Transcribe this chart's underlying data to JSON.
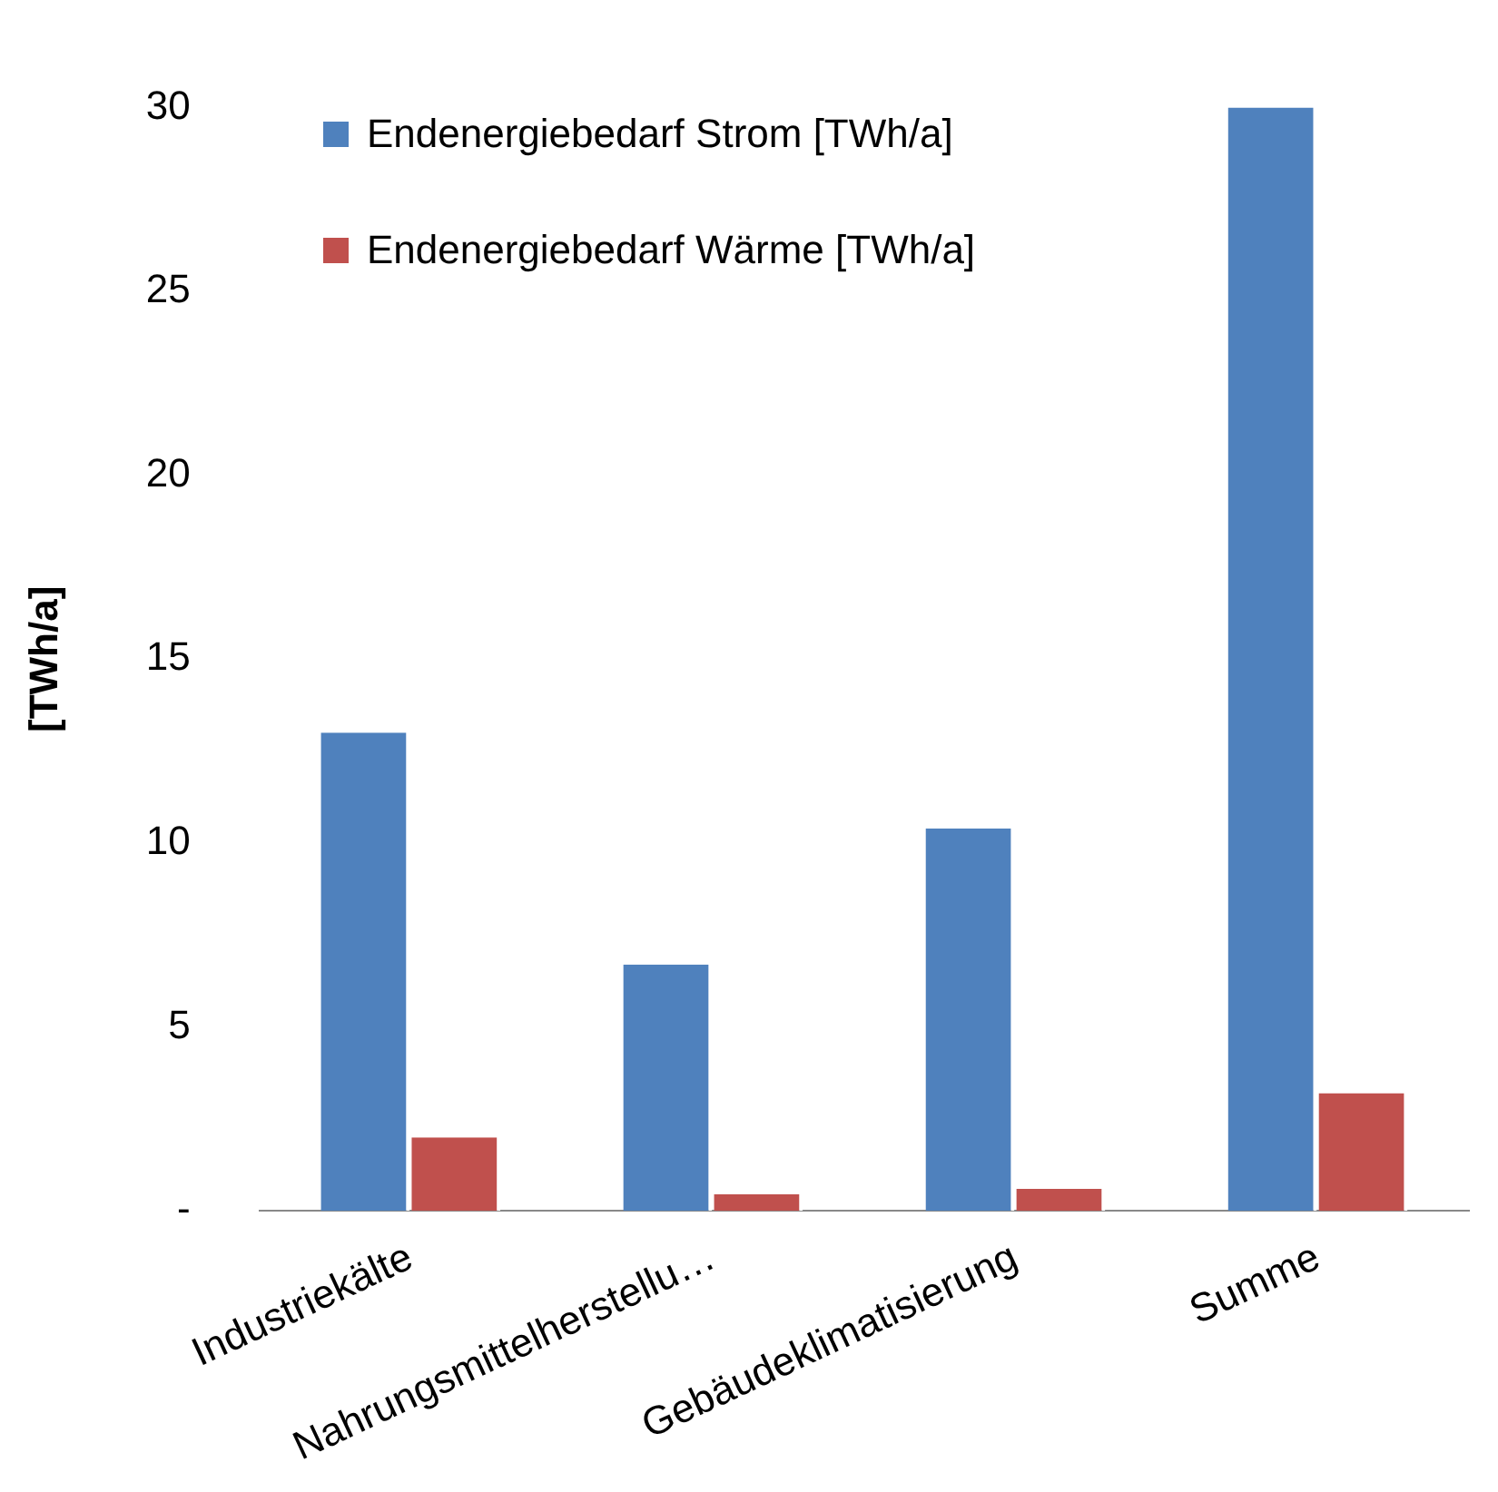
{
  "chart_data": {
    "type": "bar",
    "ylabel": "[TWh/a]",
    "categories": [
      "Industriekälte",
      "Nahrungsmittelherstellu…",
      "Gebäudeklimatisierung",
      "Summe"
    ],
    "series": [
      {
        "name": "Endenergiebedarf Strom [TWh/a]",
        "color": "#4f81bd",
        "values": [
          13.0,
          6.7,
          10.4,
          30.0
        ]
      },
      {
        "name": "Endenergiebedarf Wärme [TWh/a]",
        "color": "#c0504d",
        "values": [
          2.0,
          0.45,
          0.6,
          3.2
        ]
      }
    ],
    "ylim": [
      0,
      30
    ],
    "yticks": [
      {
        "value": 0,
        "label": "-"
      },
      5,
      10,
      15,
      20,
      25,
      30
    ],
    "grid": false,
    "legend": "top left"
  }
}
